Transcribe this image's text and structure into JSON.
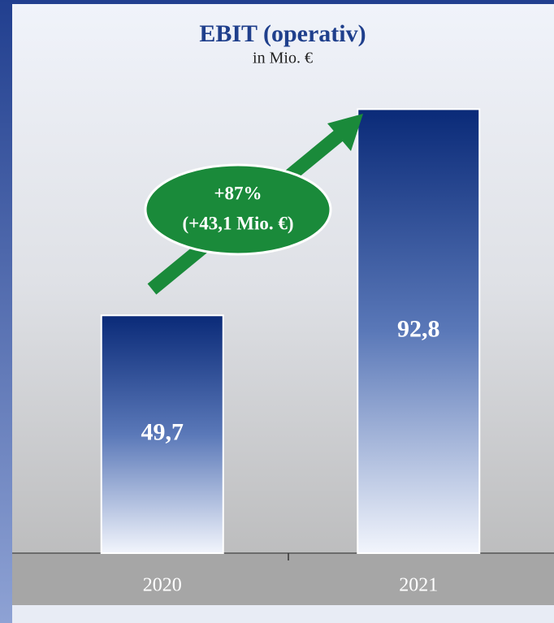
{
  "chart_data": {
    "type": "bar",
    "title": "EBIT (operativ)",
    "subtitle": "in Mio. €",
    "categories": [
      "2020",
      "2021"
    ],
    "values": [
      49.7,
      92.8
    ],
    "value_labels": [
      "49,7",
      "92,8"
    ],
    "color": "#0a2a78",
    "ylim": [
      0,
      100
    ],
    "annotations": [
      "+87%",
      "(+43,1 Mio. €)"
    ]
  }
}
